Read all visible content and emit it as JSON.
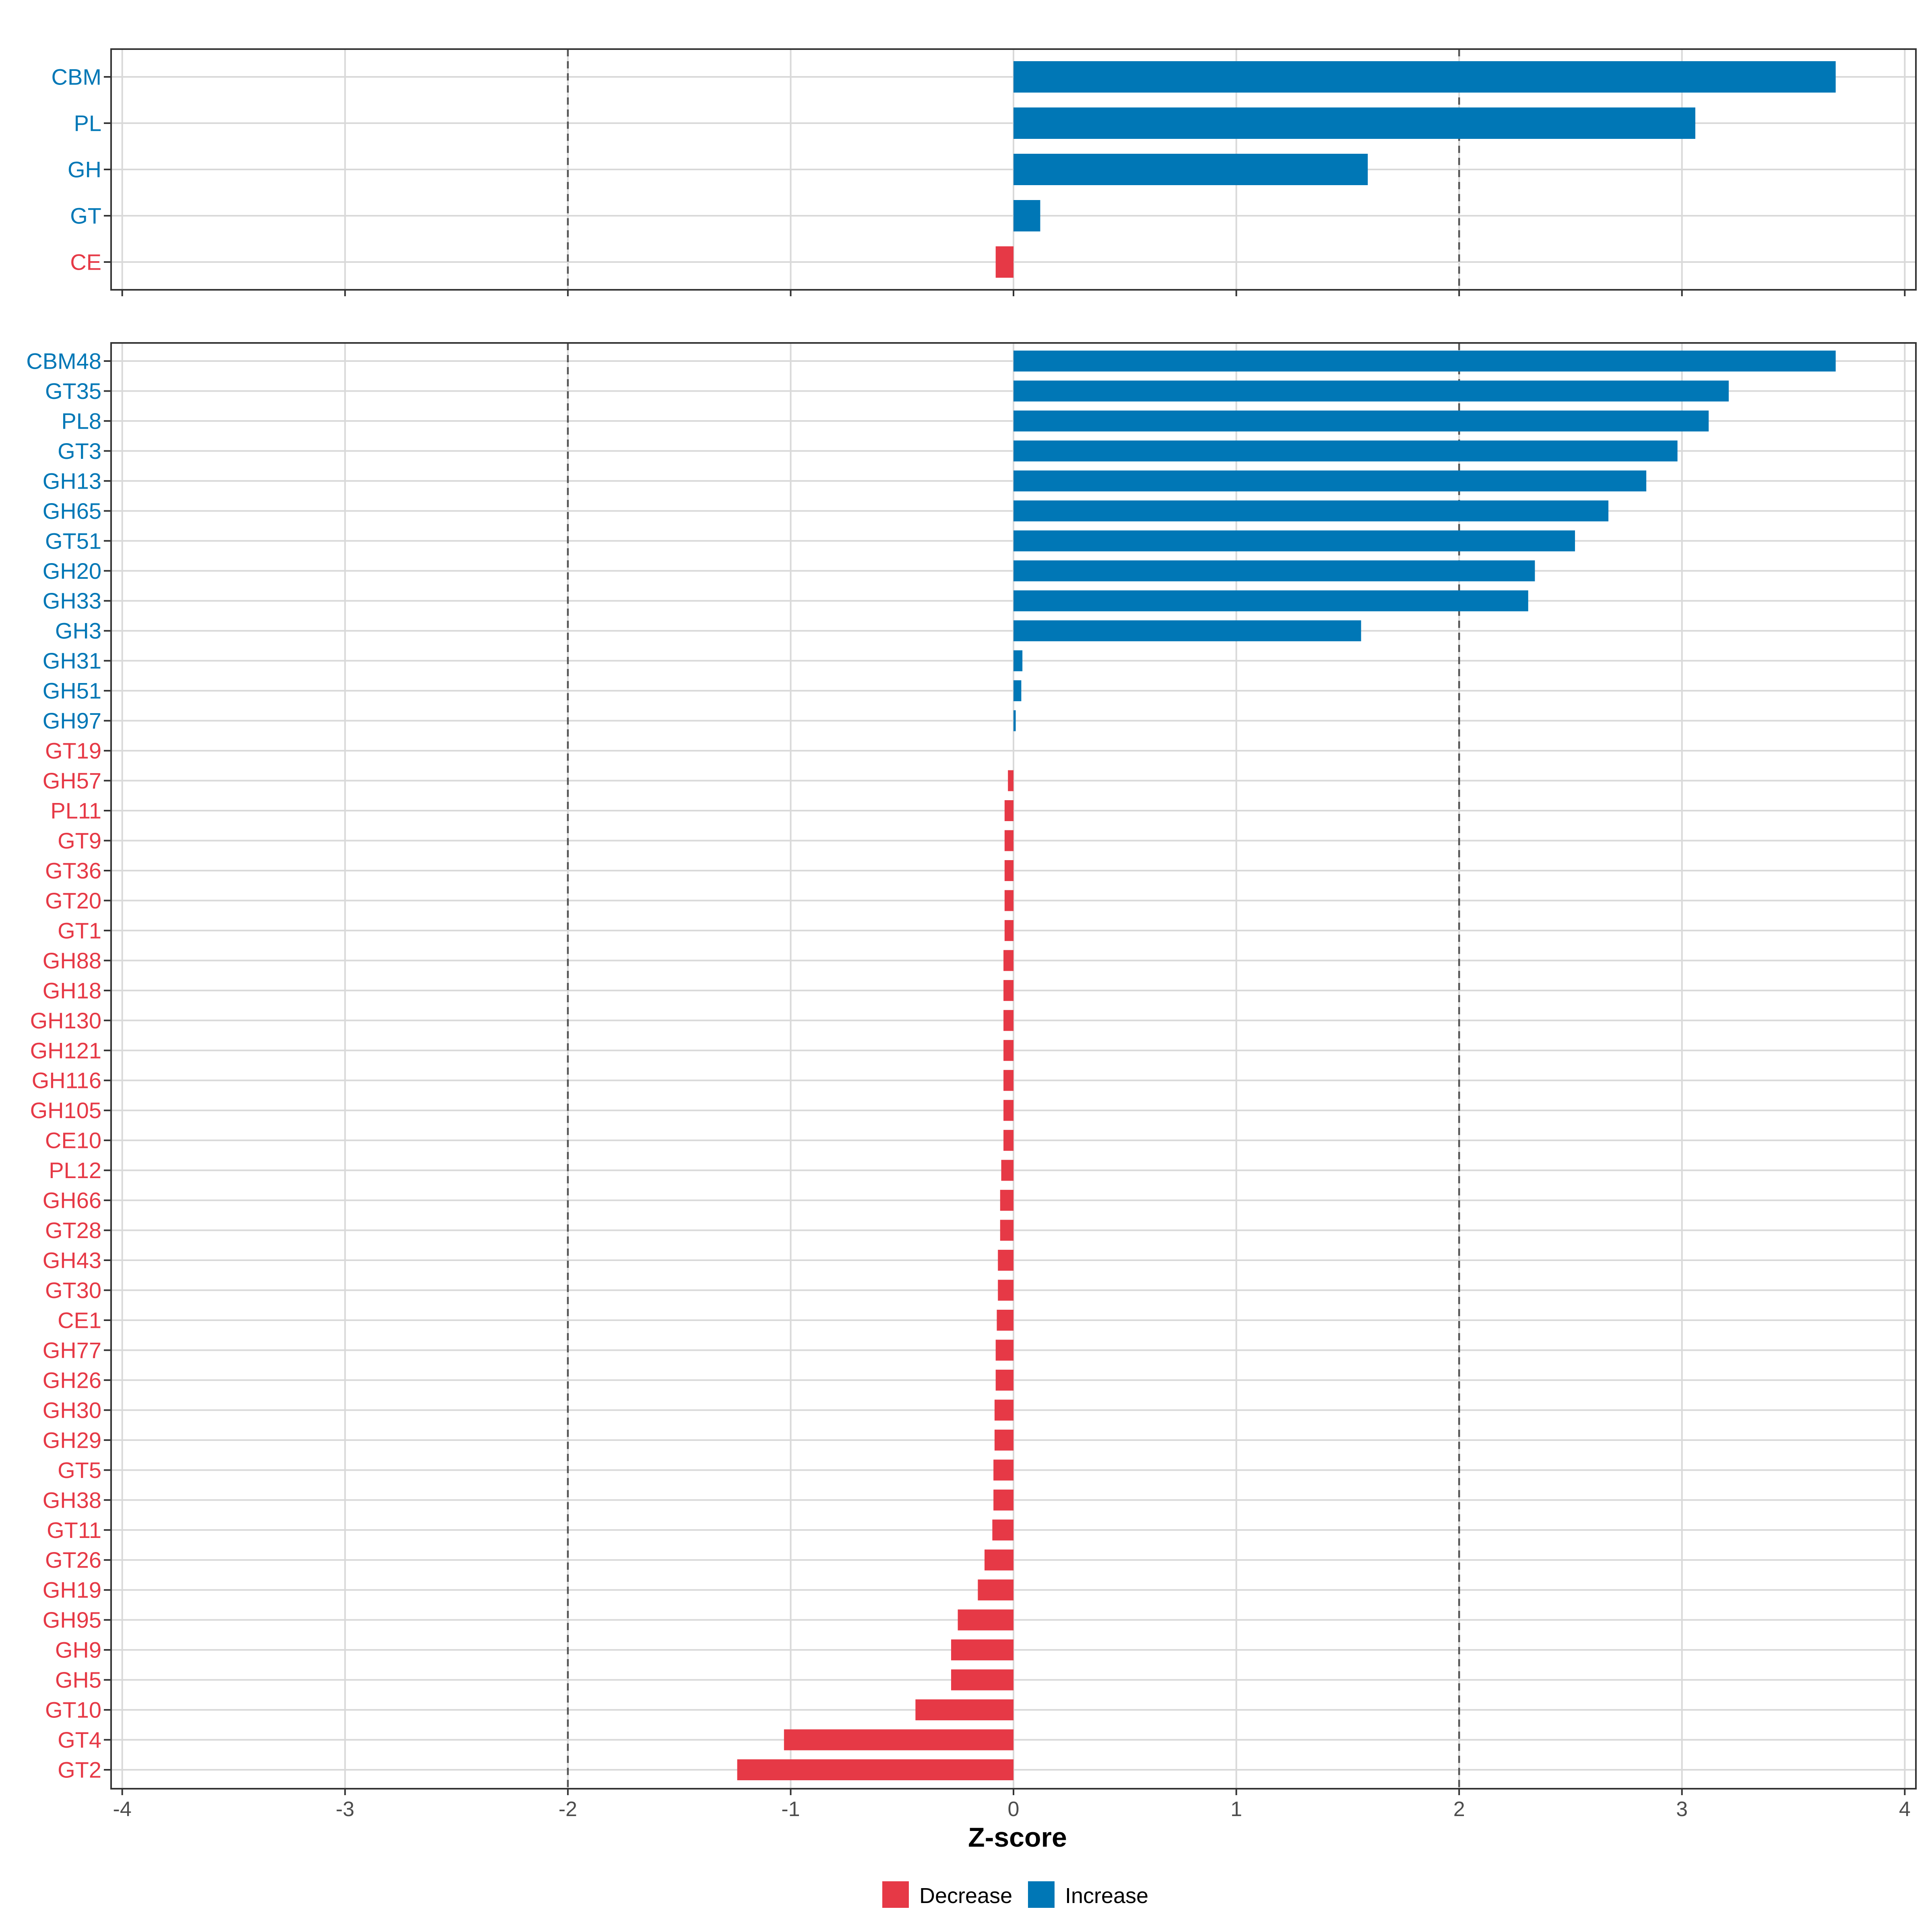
{
  "chart_data": [
    {
      "type": "bar",
      "orientation": "horizontal",
      "panel": "top",
      "categories": [
        "CBM",
        "PL",
        "GH",
        "GT",
        "CE"
      ],
      "values": [
        3.69,
        3.06,
        1.59,
        0.12,
        -0.08
      ],
      "xlim": [
        -4.05,
        4.05
      ],
      "xticks": [
        -4,
        -3,
        -2,
        -1,
        0,
        1,
        2,
        3,
        4
      ],
      "reference_lines": [
        -2,
        2
      ],
      "grid": true
    },
    {
      "type": "bar",
      "orientation": "horizontal",
      "panel": "bottom",
      "categories": [
        "CBM48",
        "GT35",
        "PL8",
        "GT3",
        "GH13",
        "GH65",
        "GT51",
        "GH20",
        "GH33",
        "GH3",
        "GH31",
        "GH51",
        "GH97",
        "GT19",
        "GH57",
        "PL11",
        "GT9",
        "GT36",
        "GT20",
        "GT1",
        "GH88",
        "GH18",
        "GH130",
        "GH121",
        "GH116",
        "GH105",
        "CE10",
        "PL12",
        "GH66",
        "GT28",
        "GH43",
        "GT30",
        "CE1",
        "GH77",
        "GH26",
        "GH30",
        "GH29",
        "GT5",
        "GH38",
        "GT11",
        "GT26",
        "GH19",
        "GH95",
        "GH9",
        "GH5",
        "GT10",
        "GT4",
        "GT2"
      ],
      "values": [
        3.69,
        3.21,
        3.12,
        2.98,
        2.84,
        2.67,
        2.52,
        2.34,
        2.31,
        1.56,
        0.04,
        0.035,
        0.01,
        0.0,
        -0.025,
        -0.04,
        -0.04,
        -0.04,
        -0.04,
        -0.04,
        -0.045,
        -0.045,
        -0.045,
        -0.045,
        -0.045,
        -0.045,
        -0.045,
        -0.055,
        -0.06,
        -0.06,
        -0.07,
        -0.07,
        -0.075,
        -0.08,
        -0.08,
        -0.085,
        -0.085,
        -0.09,
        -0.09,
        -0.095,
        -0.13,
        -0.16,
        -0.25,
        -0.28,
        -0.28,
        -0.44,
        -1.03,
        -1.24
      ],
      "xlim": [
        -4.05,
        4.05
      ],
      "xticks": [
        -4,
        -3,
        -2,
        -1,
        0,
        1,
        2,
        3,
        4
      ],
      "xlabel": "Z-score",
      "reference_lines": [
        -2,
        2
      ],
      "grid": true
    }
  ],
  "legend": {
    "position": "bottom",
    "entries": [
      {
        "label": "Decrease",
        "color": "#E63946"
      },
      {
        "label": "Increase",
        "color": "#0077B6"
      }
    ]
  },
  "colors": {
    "increase": "#0077B6",
    "decrease": "#E63946",
    "grid": "#D9D9D9",
    "reference": "#555555",
    "axis_text": "#4D4D4D"
  }
}
